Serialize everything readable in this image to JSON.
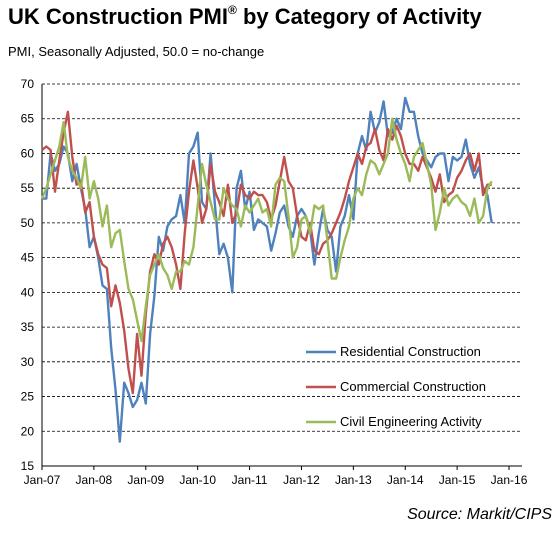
{
  "title_main": "UK Construction PMI",
  "title_reg": "®",
  "title_rest": " by Category of Activity",
  "subtitle": "PMI, Seasonally Adjusted, 50.0 = no-change",
  "source": "Source: Markit/CIPS",
  "colors": {
    "residential": "#4f81bd",
    "commercial": "#c0504d",
    "civil": "#9bbb59",
    "grid": "#000000"
  },
  "chart_data": {
    "type": "line",
    "title": "UK Construction PMI® by Category of Activity",
    "subtitle": "PMI, Seasonally Adjusted, 50.0 = no-change",
    "xlabel": "",
    "ylabel": "",
    "ylim": [
      15,
      70
    ],
    "yticks": [
      15,
      20,
      25,
      30,
      35,
      40,
      45,
      50,
      55,
      60,
      65,
      70
    ],
    "grid": "horizontal dashed",
    "legend_position": "bottom-right",
    "x_start": "2007-01",
    "x_end": "2016-03",
    "x_ticks": [
      "Jan-07",
      "Jan-08",
      "Jan-09",
      "Jan-10",
      "Jan-11",
      "Jan-12",
      "Jan-13",
      "Jan-14",
      "Jan-15",
      "Jan-16"
    ],
    "series": [
      {
        "name": "Residential Construction",
        "color_key": "residential",
        "values": [
          53.5,
          53.5,
          60.0,
          57.5,
          58.5,
          61.0,
          60.0,
          56.0,
          58.5,
          55.0,
          52.0,
          46.5,
          48.0,
          45.0,
          41.0,
          40.5,
          32.0,
          26.0,
          18.5,
          27.0,
          25.5,
          23.5,
          24.5,
          27.0,
          24.0,
          34.0,
          39.5,
          48.0,
          46.0,
          49.5,
          50.5,
          51.0,
          54.0,
          50.0,
          60.0,
          61.0,
          63.0,
          53.0,
          52.0,
          60.0,
          52.5,
          45.5,
          47.0,
          45.0,
          40.0,
          55.0,
          57.5,
          52.0,
          54.5,
          49.0,
          50.5,
          50.0,
          49.5,
          46.0,
          48.5,
          51.5,
          52.5,
          49.5,
          48.0,
          51.0,
          52.0,
          51.0,
          49.0,
          44.0,
          48.5,
          52.0,
          49.0,
          48.0,
          43.0,
          49.5,
          51.0,
          54.0,
          50.5,
          60.0,
          62.5,
          60.5,
          66.0,
          63.0,
          64.5,
          67.5,
          62.5,
          63.0,
          65.0,
          63.5,
          68.0,
          66.0,
          66.0,
          62.5,
          60.0,
          59.0,
          58.0,
          59.5,
          60.0,
          60.0,
          56.0,
          59.5,
          59.0,
          59.5,
          62.0,
          58.5,
          56.5,
          58.0,
          55.0,
          54.0,
          50.0
        ]
      },
      {
        "name": "Commercial Construction",
        "color_key": "commercial",
        "values": [
          60.5,
          61.0,
          60.5,
          54.5,
          59.0,
          63.0,
          66.0,
          59.5,
          55.5,
          56.0,
          51.5,
          53.0,
          48.0,
          45.5,
          44.0,
          43.5,
          38.0,
          41.0,
          38.5,
          34.5,
          29.0,
          25.5,
          34.0,
          28.0,
          37.0,
          43.0,
          45.5,
          44.0,
          47.0,
          48.0,
          46.5,
          44.0,
          40.5,
          48.5,
          54.5,
          59.0,
          55.0,
          50.0,
          52.0,
          58.5,
          54.5,
          53.0,
          51.0,
          55.5,
          50.0,
          51.5,
          55.5,
          54.0,
          53.5,
          54.5,
          54.0,
          54.0,
          53.0,
          50.5,
          52.5,
          56.0,
          59.5,
          56.0,
          55.0,
          51.0,
          48.0,
          47.5,
          50.0,
          46.0,
          45.5,
          47.0,
          47.5,
          48.5,
          50.0,
          51.5,
          53.5,
          56.0,
          58.0,
          60.0,
          58.5,
          61.0,
          61.5,
          63.5,
          60.5,
          59.0,
          63.5,
          62.0,
          64.0,
          62.5,
          60.0,
          58.5,
          58.5,
          57.5,
          59.5,
          58.0,
          56.5,
          54.5,
          57.0,
          53.0,
          54.0,
          54.5,
          56.5,
          57.5,
          59.0,
          60.0,
          57.5,
          60.0,
          54.0,
          55.5,
          55.5
        ]
      },
      {
        "name": "Civil Engineering Activity",
        "color_key": "civil",
        "values": [
          53.5,
          55.0,
          57.0,
          59.0,
          61.0,
          64.5,
          59.5,
          57.5,
          56.5,
          55.0,
          59.5,
          53.5,
          56.0,
          53.5,
          49.5,
          52.5,
          46.5,
          48.5,
          49.0,
          44.5,
          40.5,
          39.0,
          36.0,
          33.0,
          38.0,
          42.5,
          44.0,
          45.5,
          43.5,
          42.5,
          40.5,
          43.0,
          43.0,
          44.5,
          44.0,
          46.5,
          52.5,
          58.5,
          55.5,
          53.0,
          50.5,
          50.5,
          55.0,
          53.5,
          52.5,
          52.0,
          49.5,
          52.5,
          51.5,
          52.5,
          53.5,
          51.5,
          52.0,
          49.5,
          55.5,
          56.5,
          56.0,
          51.0,
          45.0,
          46.5,
          50.5,
          51.0,
          48.5,
          52.5,
          52.0,
          52.5,
          47.5,
          42.0,
          42.0,
          45.0,
          47.5,
          49.5,
          53.5,
          55.0,
          54.0,
          57.0,
          59.0,
          58.5,
          57.0,
          58.5,
          60.0,
          65.0,
          62.0,
          60.0,
          58.5,
          56.0,
          59.5,
          60.5,
          61.5,
          58.5,
          55.5,
          49.0,
          51.5,
          55.0,
          52.5,
          53.5,
          54.0,
          53.0,
          52.5,
          51.0,
          53.5,
          50.0,
          51.0,
          55.0,
          56.0
        ]
      }
    ]
  }
}
